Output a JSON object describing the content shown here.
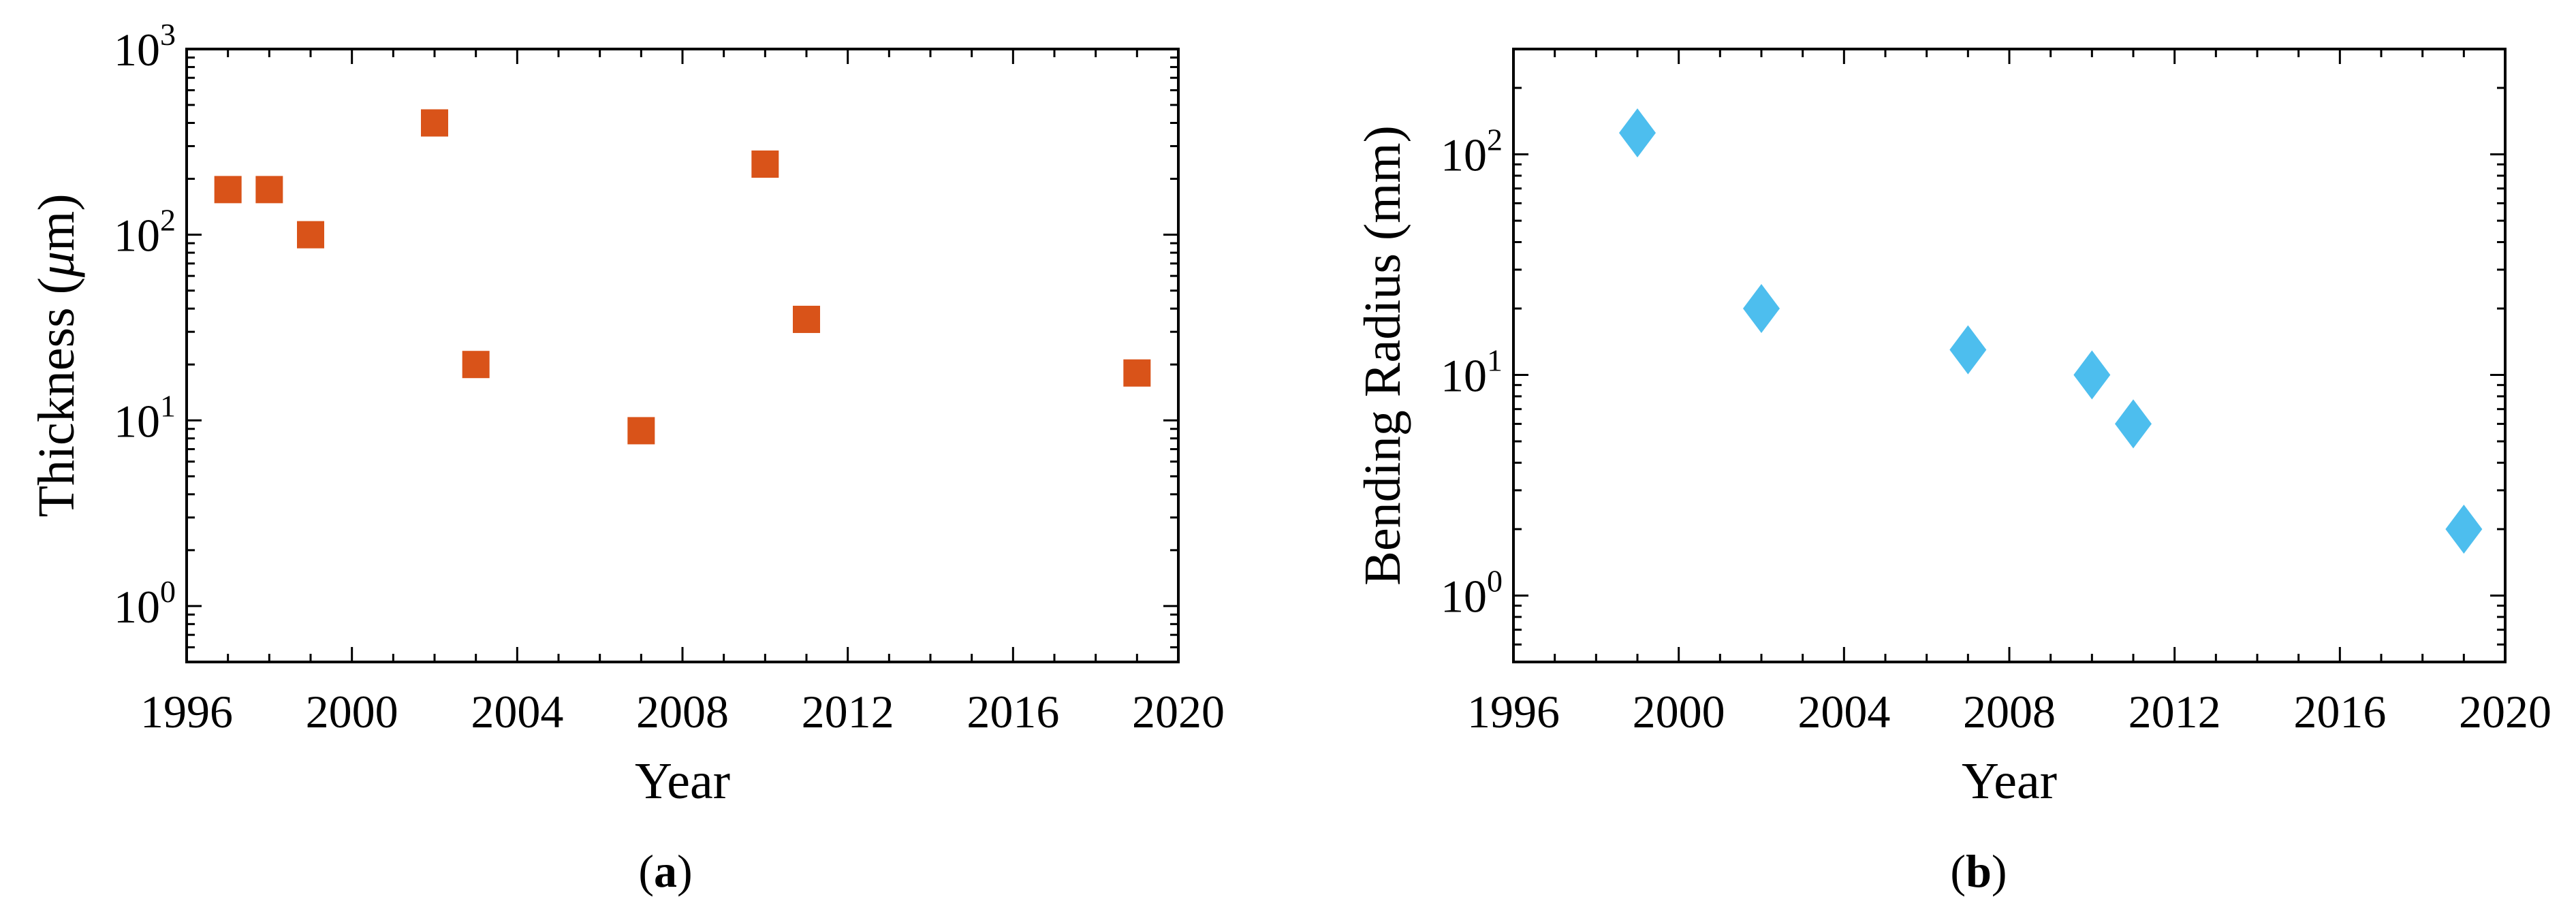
{
  "chart_data": [
    {
      "type": "scatter",
      "panel_label": "a",
      "title": "",
      "xlabel": "Year",
      "ylabel_prefix": "Thickness (",
      "ylabel_mu": "μ",
      "ylabel_suffix": "m)",
      "yscale": "log",
      "xlim": [
        1996,
        2020
      ],
      "ylim": [
        0.5,
        1000
      ],
      "x_ticks": [
        1996,
        2000,
        2004,
        2008,
        2012,
        2016,
        2020
      ],
      "y_ticks": [
        {
          "value": 1,
          "base": "10",
          "exp": "0"
        },
        {
          "value": 10,
          "base": "10",
          "exp": "1"
        },
        {
          "value": 100,
          "base": "10",
          "exp": "2"
        },
        {
          "value": 1000,
          "base": "10",
          "exp": "3"
        }
      ],
      "marker": "square",
      "color": "#d95319",
      "grid": false,
      "legend": "none",
      "series": [
        {
          "x": [
            1997,
            1998,
            1999,
            2002,
            2003,
            2007,
            2010,
            2011,
            2019
          ],
          "y": [
            175,
            175,
            100,
            400,
            20,
            8.8,
            240,
            35,
            18
          ]
        }
      ]
    },
    {
      "type": "scatter",
      "panel_label": "b",
      "title": "",
      "xlabel": "Year",
      "ylabel": "Bending Radius (mm)",
      "yscale": "log",
      "xlim": [
        1996,
        2020
      ],
      "ylim": [
        0.5,
        300
      ],
      "x_ticks": [
        1996,
        2000,
        2004,
        2008,
        2012,
        2016,
        2020
      ],
      "y_ticks": [
        {
          "value": 1,
          "base": "10",
          "exp": "0"
        },
        {
          "value": 10,
          "base": "10",
          "exp": "1"
        },
        {
          "value": 100,
          "base": "10",
          "exp": "2"
        }
      ],
      "marker": "diamond",
      "color": "#4dbeee",
      "grid": false,
      "legend": "none",
      "series": [
        {
          "x": [
            1999,
            2002,
            2007,
            2010,
            2011,
            2019
          ],
          "y": [
            125,
            20,
            13,
            10,
            6,
            2
          ]
        }
      ]
    }
  ]
}
